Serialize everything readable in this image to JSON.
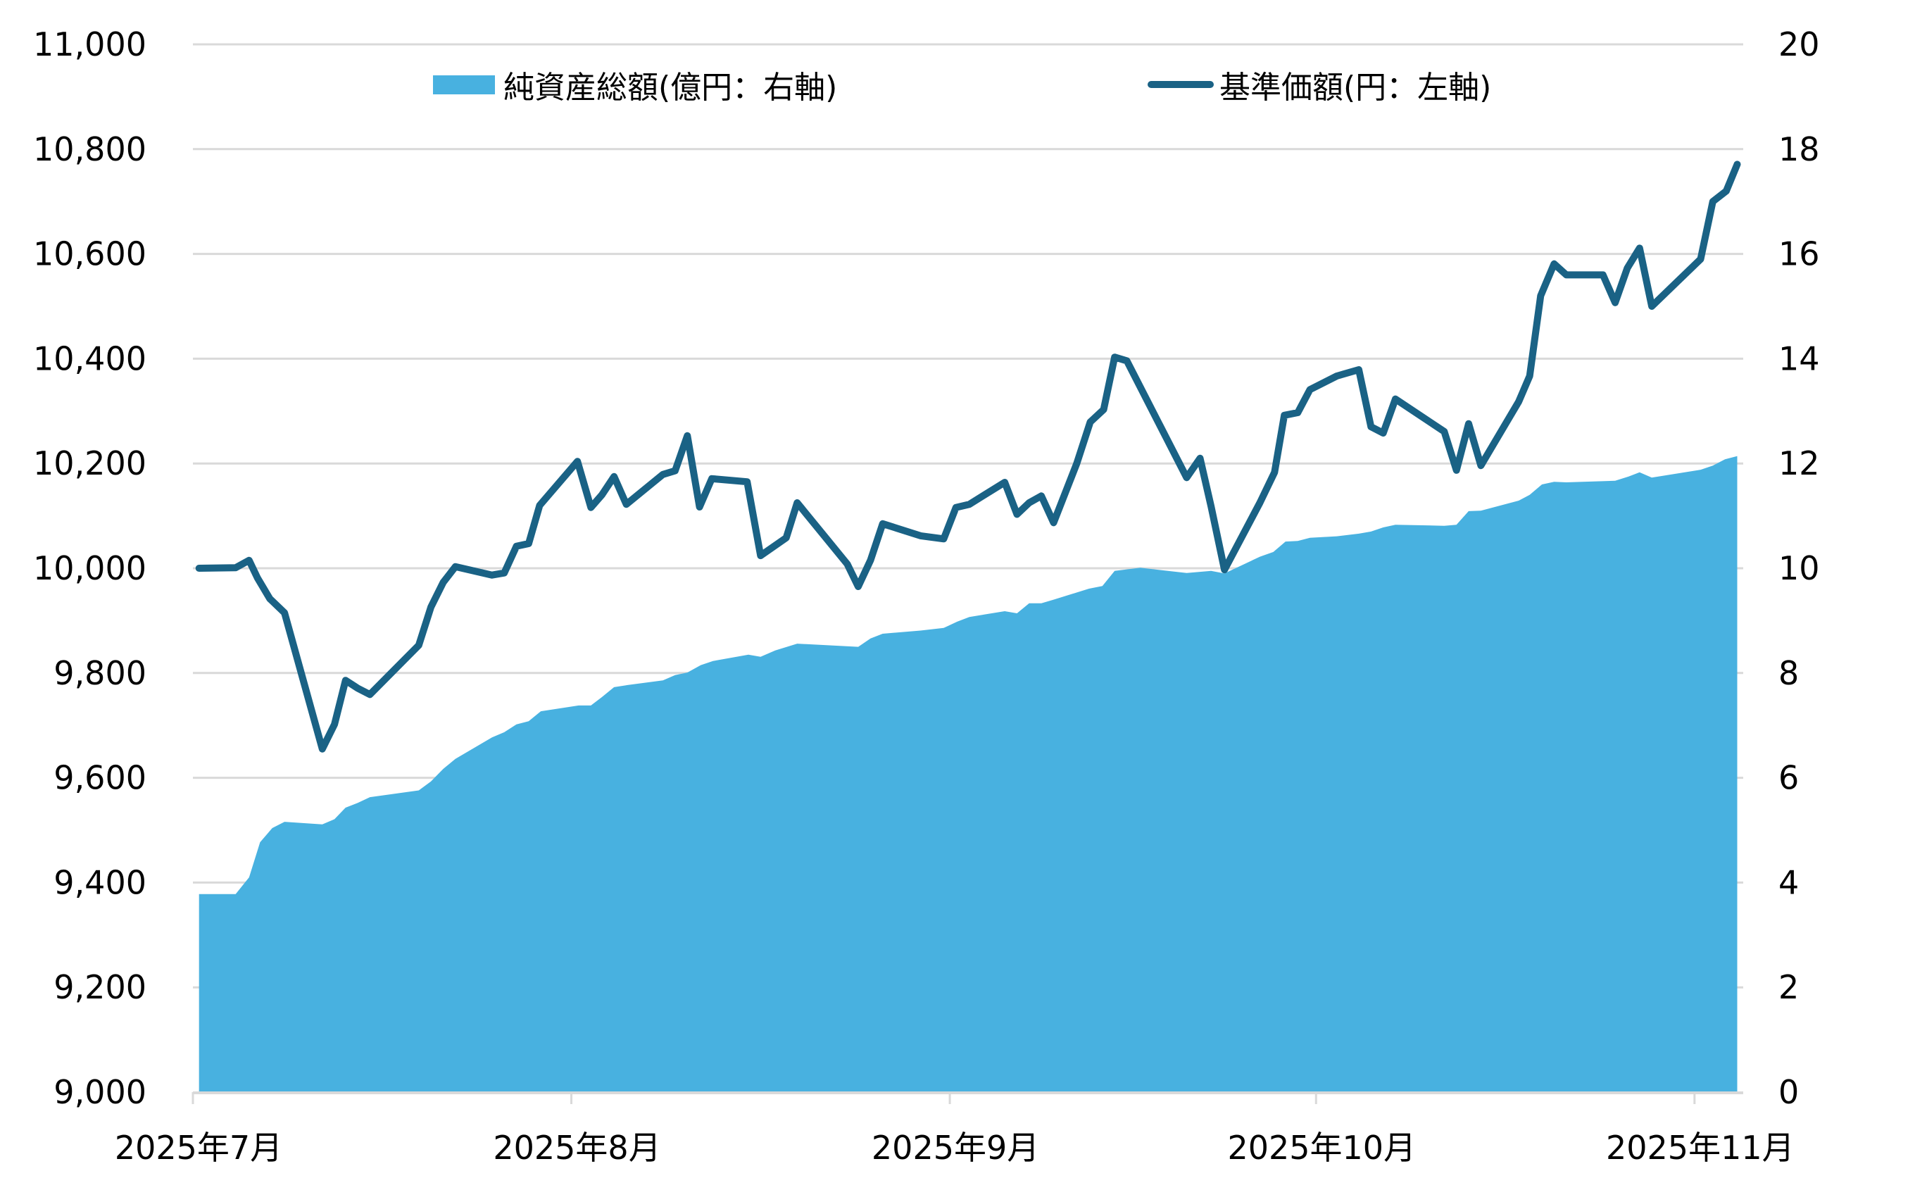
{
  "legend": {
    "area_label": "純資産総額(億円：右軸)",
    "line_label": "基準価額(円：左軸)"
  },
  "colors": {
    "area": "#48b1e0",
    "line": "#1a6285",
    "grid": "#d9d9d9",
    "text": "#000000"
  },
  "chart_data": {
    "type": "area+line",
    "title": "",
    "xlabel": "",
    "ylabel_left": "基準価額(円)",
    "ylabel_right": "純資産総額(億円)",
    "x_ticks": [
      "2025年7月",
      "2025年8月",
      "2025年9月",
      "2025年10月",
      "2025年11月"
    ],
    "x_tick_days": [
      0,
      31,
      62,
      92,
      123
    ],
    "x_day_origin": "2025-07-01",
    "x_day_range": [
      0,
      127
    ],
    "left_axis": {
      "ticks": [
        "9,000",
        "9,200",
        "9,400",
        "9,600",
        "9,800",
        "10,000",
        "10,200",
        "10,400",
        "10,600",
        "10,800",
        "11,000"
      ],
      "ylim": [
        9000,
        11000
      ]
    },
    "right_axis": {
      "ticks": [
        "0",
        "2",
        "4",
        "6",
        "8",
        "10",
        "12",
        "14",
        "16",
        "18",
        "20"
      ],
      "ylim": [
        0,
        20
      ]
    },
    "grid": true,
    "legend_position": "top",
    "series": [
      {
        "name": "純資産総額(億円：右軸)",
        "type": "area",
        "axis": "right",
        "days": [
          0.5,
          3.5,
          4.6,
          5.5,
          6.5,
          7.5,
          10.6,
          11.6,
          12.5,
          13.5,
          14.5,
          18.5,
          19.5,
          20.5,
          21.5,
          24.5,
          25.5,
          26.5,
          27.5,
          28.5,
          31.6,
          32.6,
          33.5,
          34.5,
          35.6,
          38.5,
          39.5,
          40.5,
          41.6,
          42.6,
          45.5,
          46.5,
          47.7,
          49.5,
          54.5,
          55.5,
          56.5,
          59.6,
          61.5,
          62.6,
          63.6,
          66.5,
          67.5,
          68.5,
          69.5,
          70.5,
          73.4,
          74.5,
          75.5,
          77.6,
          81.4,
          83.4,
          84.5,
          87.4,
          88.5,
          89.5,
          90.5,
          91.5,
          93.7,
          95.5,
          96.5,
          97.5,
          98.5,
          102.5,
          103.5,
          104.5,
          105.5,
          108.6,
          109.5,
          110.5,
          111.5,
          112.5,
          116.5,
          117.6,
          118.5,
          119.5,
          123.5,
          124.5,
          125.5,
          126.5
        ],
        "values": [
          3.78,
          3.78,
          4.1,
          4.77,
          5.04,
          5.16,
          5.11,
          5.21,
          5.43,
          5.52,
          5.63,
          5.76,
          5.93,
          6.17,
          6.36,
          6.77,
          6.87,
          7.02,
          7.08,
          7.27,
          7.38,
          7.38,
          7.54,
          7.73,
          7.77,
          7.86,
          7.96,
          8.01,
          8.15,
          8.23,
          8.35,
          8.31,
          8.43,
          8.56,
          8.5,
          8.66,
          8.75,
          8.81,
          8.86,
          8.98,
          9.07,
          9.18,
          9.14,
          9.33,
          9.33,
          9.4,
          9.61,
          9.66,
          9.95,
          10.01,
          9.91,
          9.95,
          9.9,
          10.22,
          10.31,
          10.51,
          10.52,
          10.58,
          10.61,
          10.66,
          10.7,
          10.78,
          10.83,
          10.81,
          10.83,
          11.09,
          11.1,
          11.29,
          11.4,
          11.6,
          11.65,
          11.64,
          11.67,
          11.75,
          11.83,
          11.73,
          11.88,
          11.96,
          12.08,
          12.14
        ]
      },
      {
        "name": "基準価額(円：左軸)",
        "type": "line",
        "axis": "left",
        "days": [
          0.5,
          3.5,
          4.6,
          5.3,
          6.3,
          7.5,
          10.6,
          11.6,
          12.5,
          13.5,
          14.5,
          18.5,
          19.5,
          20.5,
          21.5,
          24.5,
          25.5,
          26.5,
          27.5,
          28.4,
          31.5,
          32.6,
          33.5,
          34.5,
          35.5,
          38.5,
          39.5,
          40.5,
          41.5,
          42.5,
          45.4,
          46.5,
          48.6,
          49.5,
          53.6,
          54.5,
          55.5,
          56.5,
          59.6,
          61.5,
          62.5,
          63.6,
          66.5,
          67.5,
          68.5,
          69.5,
          70.5,
          72.4,
          73.5,
          74.6,
          75.5,
          76.5,
          81.4,
          82.5,
          83.4,
          84.5,
          87.4,
          88.6,
          89.4,
          90.5,
          91.5,
          93.7,
          95.5,
          96.5,
          97.5,
          98.5,
          102.5,
          103.5,
          104.5,
          105.5,
          108.6,
          109.5,
          110.4,
          111.5,
          112.5,
          115.5,
          116.5,
          117.5,
          118.5,
          119.5,
          123.5,
          124.5,
          125.6,
          126.5
        ],
        "values": [
          10000,
          10001,
          10015,
          9981,
          9942,
          9915,
          9655,
          9702,
          9786,
          9771,
          9759,
          9853,
          9926,
          9973,
          10003,
          9987,
          9991,
          10042,
          10047,
          10120,
          10204,
          10116,
          10140,
          10175,
          10122,
          10179,
          10186,
          10253,
          10117,
          10171,
          10165,
          10024,
          10058,
          10125,
          10008,
          9965,
          10015,
          10085,
          10062,
          10056,
          10116,
          10122,
          10164,
          10103,
          10125,
          10138,
          10087,
          10200,
          10279,
          10303,
          10403,
          10396,
          10173,
          10210,
          10118,
          9997,
          10125,
          10183,
          10292,
          10297,
          10341,
          10367,
          10379,
          10270,
          10258,
          10323,
          10261,
          10187,
          10276,
          10196,
          10318,
          10367,
          10520,
          10581,
          10560,
          10560,
          10507,
          10573,
          10611,
          10500,
          10590,
          10700,
          10720,
          10771
        ]
      }
    ]
  }
}
